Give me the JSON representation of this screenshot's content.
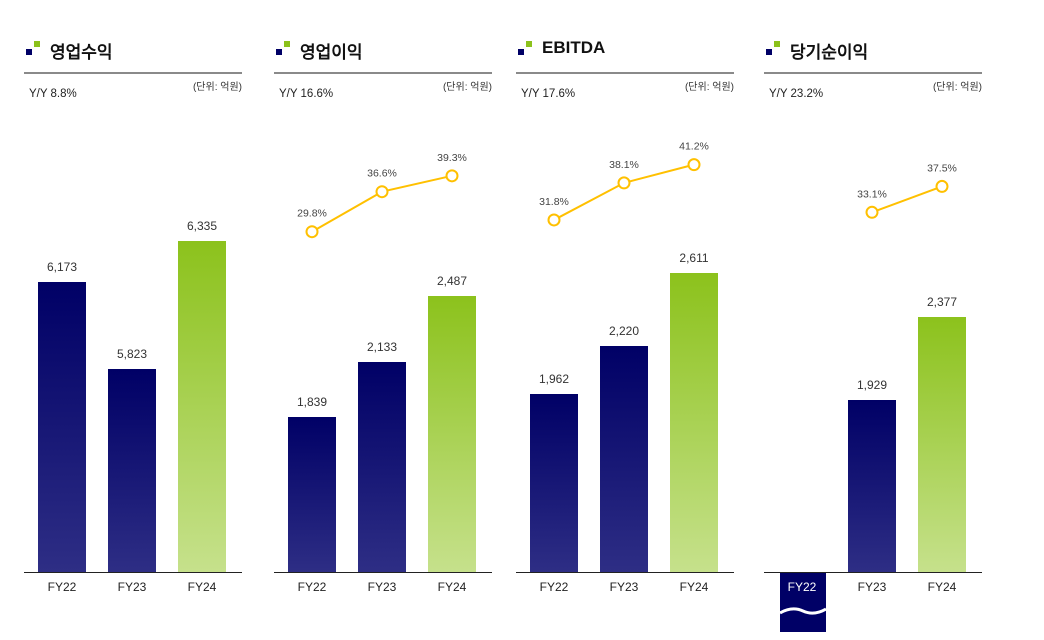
{
  "unit_label": "(단위: 억원)",
  "colors": {
    "navy": "#000066",
    "green": "#8cc21c",
    "line": "#ffc000"
  },
  "chart_data": [
    {
      "type": "bar",
      "title": "영업수익",
      "yoy": "Y/Y  8.8%",
      "categories": [
        "FY22",
        "FY23",
        "FY24"
      ],
      "values": [
        6173,
        5823,
        6335
      ],
      "value_labels": [
        "6,173",
        "5,823",
        "6,335"
      ],
      "ylim": [
        5000,
        6530
      ],
      "bar_colors": [
        "navy",
        "navy",
        "green"
      ],
      "line": null
    },
    {
      "type": "bar",
      "title": "영업이익",
      "yoy": "Y/Y  16.6%",
      "categories": [
        "FY22",
        "FY23",
        "FY24"
      ],
      "values": [
        1839,
        2133,
        2487
      ],
      "value_labels": [
        "1,839",
        "2,133",
        "2,487"
      ],
      "ylim": [
        1000,
        3040
      ],
      "bar_colors": [
        "navy",
        "navy",
        "green"
      ],
      "line": {
        "values": [
          29.8,
          36.6,
          39.3
        ],
        "labels": [
          "29.8%",
          "36.6%",
          "39.3%"
        ],
        "ylim": [
          0,
          64.6
        ]
      }
    },
    {
      "type": "bar",
      "title": "EBITDA",
      "yoy": "Y/Y  17.6%",
      "categories": [
        "FY22",
        "FY23",
        "FY24"
      ],
      "values": [
        1962,
        2220,
        2611
      ],
      "value_labels": [
        "1,962",
        "2,220",
        "2,611"
      ],
      "ylim": [
        1000,
        3040
      ],
      "bar_colors": [
        "navy",
        "navy",
        "green"
      ],
      "line": {
        "values": [
          31.8,
          38.1,
          41.2
        ],
        "labels": [
          "31.8%",
          "38.1%",
          "41.2%"
        ],
        "ylim": [
          0,
          64.6
        ]
      }
    },
    {
      "type": "bar",
      "title": "당기순이익",
      "yoy": "Y/Y  23.2%",
      "categories": [
        "FY22",
        "FY23",
        "FY24"
      ],
      "values": [
        null,
        1929,
        2377
      ],
      "value_labels": [
        "",
        "1,929",
        "2,377"
      ],
      "negative": [
        true,
        false,
        false
      ],
      "ylim": [
        1000,
        3040
      ],
      "bar_colors": [
        "navy",
        "navy",
        "green"
      ],
      "line": {
        "values": [
          null,
          33.1,
          37.5
        ],
        "labels": [
          "",
          "33.1%",
          "37.5%"
        ],
        "ylim": [
          0,
          64.6
        ]
      }
    }
  ]
}
